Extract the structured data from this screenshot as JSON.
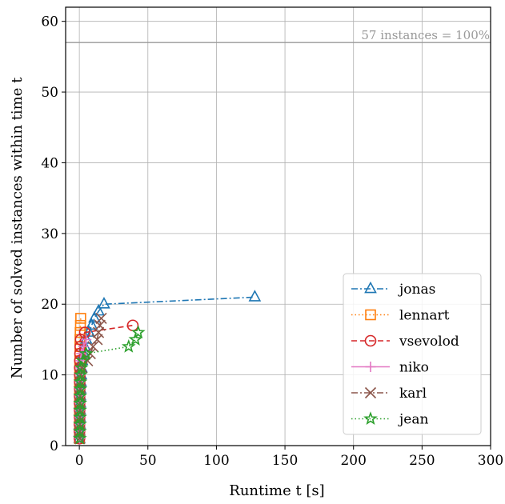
{
  "chart_data": {
    "type": "line",
    "xlabel": "Runtime t [s]",
    "ylabel": "Number of solved instances within time t",
    "xlim": [
      -10,
      300
    ],
    "ylim": [
      0,
      62
    ],
    "xticks": [
      0,
      50,
      100,
      150,
      200,
      250,
      300
    ],
    "yticks": [
      0,
      10,
      20,
      30,
      40,
      50,
      60
    ],
    "grid": true,
    "legend_position": "lower-right",
    "reference_line": {
      "y": 57,
      "label": "57 instances = 100%",
      "color": "#999999"
    },
    "series": [
      {
        "name": "jonas",
        "color": "#1f77b4",
        "marker": "triangle",
        "linestyle": "dashdot",
        "points": [
          [
            0.1,
            1
          ],
          [
            0.2,
            2
          ],
          [
            0.3,
            3
          ],
          [
            0.4,
            4
          ],
          [
            0.5,
            5
          ],
          [
            0.6,
            6
          ],
          [
            0.7,
            7
          ],
          [
            0.8,
            8
          ],
          [
            1.0,
            9
          ],
          [
            1.2,
            10
          ],
          [
            1.5,
            11
          ],
          [
            2,
            12
          ],
          [
            3,
            13
          ],
          [
            4,
            14
          ],
          [
            5,
            15
          ],
          [
            7,
            16
          ],
          [
            9,
            17
          ],
          [
            11,
            18
          ],
          [
            14,
            19
          ],
          [
            18,
            20
          ],
          [
            128,
            21
          ]
        ]
      },
      {
        "name": "lennart",
        "color": "#ff7f0e",
        "marker": "square",
        "linestyle": "dotted",
        "points": [
          [
            0.1,
            1
          ],
          [
            0.1,
            2
          ],
          [
            0.1,
            3
          ],
          [
            0.1,
            4
          ],
          [
            0.2,
            5
          ],
          [
            0.2,
            6
          ],
          [
            0.2,
            7
          ],
          [
            0.2,
            8
          ],
          [
            0.2,
            9
          ],
          [
            0.3,
            10
          ],
          [
            0.3,
            11
          ],
          [
            0.3,
            12
          ],
          [
            0.4,
            13
          ],
          [
            0.4,
            14
          ],
          [
            0.5,
            15
          ],
          [
            0.6,
            16
          ],
          [
            0.8,
            17
          ],
          [
            1.0,
            18
          ]
        ]
      },
      {
        "name": "vsevolod",
        "color": "#d62728",
        "marker": "circle",
        "linestyle": "dashed",
        "points": [
          [
            0.1,
            1
          ],
          [
            0.1,
            2
          ],
          [
            0.1,
            3
          ],
          [
            0.2,
            4
          ],
          [
            0.2,
            5
          ],
          [
            0.2,
            6
          ],
          [
            0.2,
            7
          ],
          [
            0.3,
            8
          ],
          [
            0.3,
            9
          ],
          [
            0.3,
            10
          ],
          [
            0.3,
            11
          ],
          [
            0.4,
            12
          ],
          [
            0.5,
            13
          ],
          [
            0.7,
            14
          ],
          [
            1.0,
            15
          ],
          [
            4,
            16
          ],
          [
            39,
            17
          ]
        ]
      },
      {
        "name": "niko",
        "color": "#e377c2",
        "marker": "plus",
        "linestyle": "solid",
        "points": [
          [
            0.2,
            1
          ],
          [
            0.2,
            2
          ],
          [
            0.3,
            3
          ],
          [
            0.3,
            4
          ],
          [
            0.3,
            5
          ],
          [
            0.4,
            6
          ],
          [
            0.4,
            7
          ],
          [
            0.4,
            8
          ],
          [
            0.5,
            9
          ],
          [
            0.6,
            10
          ],
          [
            0.7,
            11
          ],
          [
            0.9,
            12
          ],
          [
            1.5,
            13
          ],
          [
            3,
            14
          ],
          [
            5,
            15
          ]
        ]
      },
      {
        "name": "karl",
        "color": "#8c564b",
        "marker": "x",
        "linestyle": "dashdot",
        "points": [
          [
            0.3,
            1
          ],
          [
            0.3,
            2
          ],
          [
            0.4,
            3
          ],
          [
            0.4,
            4
          ],
          [
            0.5,
            5
          ],
          [
            0.5,
            6
          ],
          [
            0.6,
            7
          ],
          [
            0.7,
            8
          ],
          [
            0.8,
            9
          ],
          [
            1.0,
            10
          ],
          [
            2,
            11
          ],
          [
            6,
            12
          ],
          [
            8,
            13
          ],
          [
            10,
            14
          ],
          [
            13,
            15
          ],
          [
            14,
            16
          ],
          [
            15,
            17
          ],
          [
            16,
            18
          ]
        ]
      },
      {
        "name": "jean",
        "color": "#2ca02c",
        "marker": "star",
        "linestyle": "dotted",
        "points": [
          [
            0.4,
            1
          ],
          [
            0.4,
            2
          ],
          [
            0.5,
            3
          ],
          [
            0.5,
            4
          ],
          [
            0.5,
            5
          ],
          [
            0.6,
            6
          ],
          [
            0.6,
            7
          ],
          [
            0.7,
            8
          ],
          [
            0.8,
            9
          ],
          [
            1.0,
            10
          ],
          [
            1.5,
            11
          ],
          [
            2.5,
            12
          ],
          [
            5,
            13
          ],
          [
            36,
            14
          ],
          [
            41,
            15
          ],
          [
            43,
            16
          ]
        ]
      }
    ]
  }
}
